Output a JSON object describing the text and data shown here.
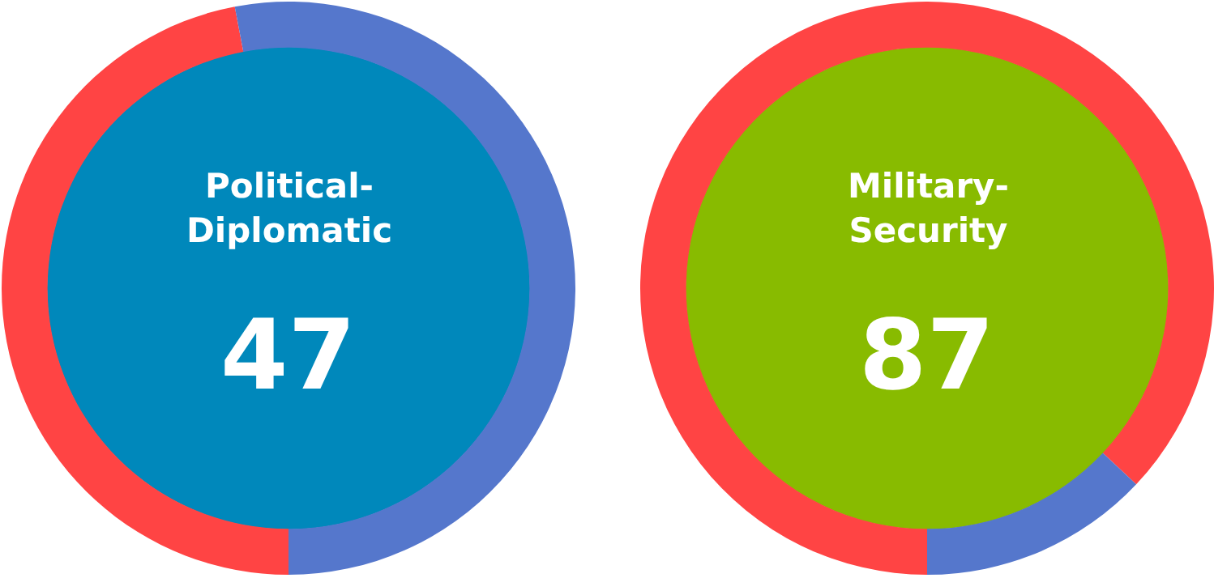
{
  "chart_data": [
    {
      "type": "donut",
      "title": "Political-Diplomatic",
      "categories": [
        null,
        null
      ],
      "values": [
        47,
        53
      ],
      "colors": [
        "#ff4444",
        "#5577cc"
      ],
      "value_labels": [
        "47",
        null
      ]
    },
    {
      "type": "donut",
      "title": "Military-Security",
      "categories": [
        null,
        null
      ],
      "values": [
        87,
        13
      ],
      "colors": [
        "#ff4444",
        "#5577cc"
      ],
      "value_labels": [
        "87",
        null
      ]
    }
  ]
}
